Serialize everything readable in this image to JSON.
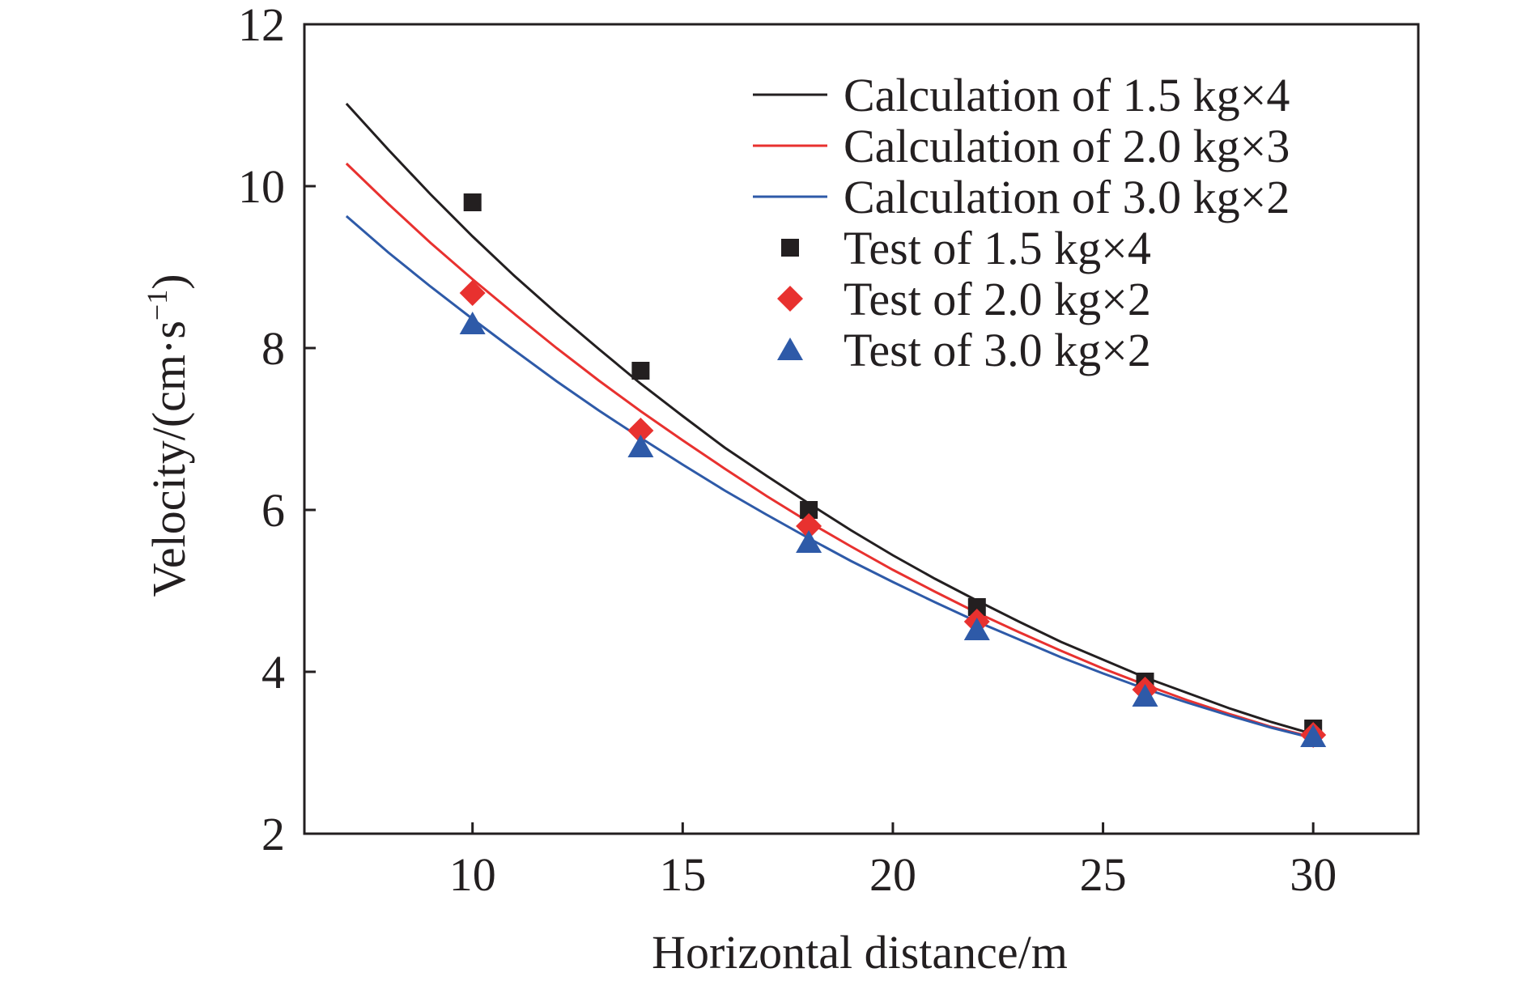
{
  "chart_data": {
    "type": "line",
    "xlabel": "Horizontal distance/m",
    "ylabel": "Velocity/(cm·s",
    "ylabel_sup": "−1",
    "ylabel_close": ")",
    "xlim": [
      6.0,
      32.5
    ],
    "ylim": [
      2,
      12
    ],
    "xticks": [
      10,
      15,
      20,
      25,
      30
    ],
    "yticks": [
      2,
      4,
      6,
      8,
      10,
      12
    ],
    "grid": false,
    "legend_position": "top-right",
    "series": [
      {
        "name": "Calculation of 1.5 kg×4",
        "kind": "line",
        "color": "#231f20",
        "x": [
          7,
          8,
          9,
          10,
          11,
          12,
          13,
          14,
          15,
          16,
          17,
          18,
          19,
          20,
          21,
          22,
          23,
          24,
          25,
          26,
          27,
          28,
          29,
          30
        ],
        "y": [
          11.02,
          10.45,
          9.9,
          9.38,
          8.89,
          8.43,
          7.99,
          7.56,
          7.16,
          6.77,
          6.42,
          6.08,
          5.75,
          5.44,
          5.15,
          4.88,
          4.62,
          4.37,
          4.15,
          3.93,
          3.74,
          3.55,
          3.38,
          3.23
        ]
      },
      {
        "name": "Calculation of 2.0 kg×3",
        "kind": "line",
        "color": "#e8312f",
        "x": [
          7,
          8,
          9,
          10,
          11,
          12,
          13,
          14,
          15,
          16,
          17,
          18,
          19,
          20,
          21,
          22,
          23,
          24,
          25,
          26,
          27,
          28,
          29,
          30
        ],
        "y": [
          10.28,
          9.78,
          9.3,
          8.85,
          8.42,
          8.0,
          7.6,
          7.22,
          6.86,
          6.51,
          6.17,
          5.85,
          5.55,
          5.26,
          4.99,
          4.73,
          4.49,
          4.26,
          4.04,
          3.84,
          3.65,
          3.48,
          3.32,
          3.19
        ]
      },
      {
        "name": "Calculation of 3.0 kg×2",
        "kind": "line",
        "color": "#2e5aa8",
        "x": [
          7,
          8,
          9,
          10,
          11,
          12,
          13,
          14,
          15,
          16,
          17,
          18,
          19,
          20,
          21,
          22,
          23,
          24,
          25,
          26,
          27,
          28,
          29,
          30
        ],
        "y": [
          9.63,
          9.18,
          8.76,
          8.36,
          7.97,
          7.59,
          7.23,
          6.89,
          6.56,
          6.24,
          5.94,
          5.65,
          5.37,
          5.11,
          4.86,
          4.62,
          4.4,
          4.18,
          3.98,
          3.79,
          3.62,
          3.46,
          3.31,
          3.18
        ]
      },
      {
        "name": "Test of 1.5 kg×4",
        "kind": "scatter",
        "marker": "square",
        "color": "#231f20",
        "x": [
          10,
          14,
          18,
          22,
          26,
          30
        ],
        "y": [
          9.8,
          7.72,
          6.0,
          4.8,
          3.88,
          3.3
        ]
      },
      {
        "name": "Test of 2.0 kg×2",
        "kind": "scatter",
        "marker": "diamond",
        "color": "#e8312f",
        "x": [
          10,
          14,
          18,
          22,
          26,
          30
        ],
        "y": [
          8.68,
          6.98,
          5.8,
          4.62,
          3.78,
          3.22
        ]
      },
      {
        "name": "Test of 3.0 kg×2",
        "kind": "scatter",
        "marker": "triangle",
        "color": "#2e5aa8",
        "x": [
          10,
          14,
          18,
          22,
          26,
          30
        ],
        "y": [
          8.3,
          6.78,
          5.6,
          4.52,
          3.7,
          3.2
        ]
      }
    ]
  }
}
